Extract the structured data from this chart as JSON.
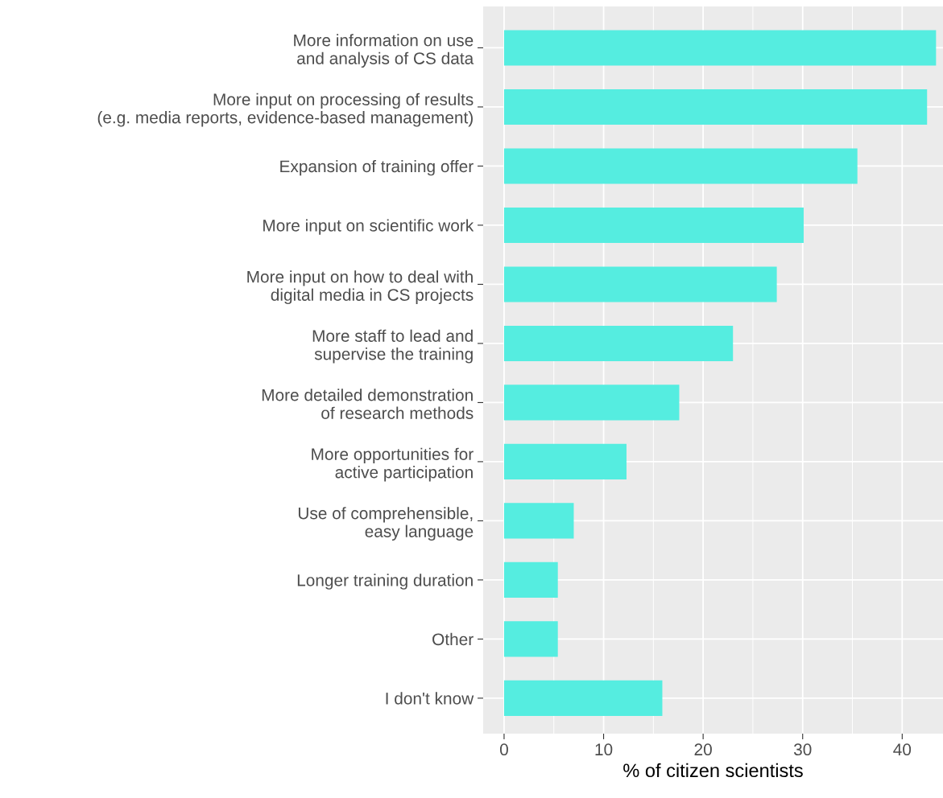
{
  "chart_data": {
    "type": "bar",
    "orientation": "horizontal",
    "xlabel": "% of citizen scientists",
    "categories": [
      "More information on use\nand analysis of CS data",
      "More input on processing of results\n(e.g. media reports, evidence-based management)",
      "Expansion of training offer",
      "More input on scientific work",
      "More input on how to deal with\ndigital media in CS projects",
      "More staff to lead and\nsupervise the training",
      "More detailed demonstration\nof research methods",
      "More opportunities for\nactive participation",
      "Use of comprehensible,\neasy language",
      "Longer training duration",
      "Other",
      "I don't know"
    ],
    "values": [
      43.4,
      42.5,
      35.5,
      30.1,
      27.4,
      23.0,
      17.6,
      12.3,
      7.0,
      5.4,
      5.4,
      15.9
    ],
    "color": "#55ede0",
    "xlim": [
      -2.1,
      44.1
    ],
    "xticks": [
      0,
      10,
      20,
      30,
      40
    ],
    "grid": true
  }
}
